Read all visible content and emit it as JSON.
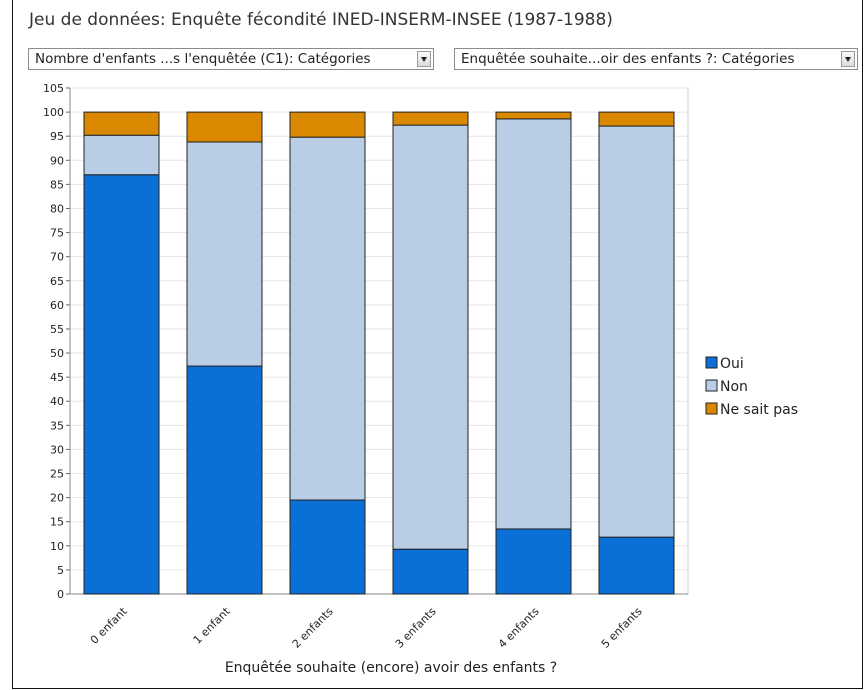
{
  "header": {
    "title": "Jeu de données: Enquête fécondité INED-INSERM-INSEE (1987-1988)"
  },
  "controls": {
    "select_left": "Nombre d'enfants ...s l'enquêtée (C1): Catégories",
    "select_right": "Enquêtée souhaite...oir des enfants ?: Catégories"
  },
  "chart_data": {
    "type": "bar",
    "stacked": true,
    "xlabel": "Enquêtée souhaite (encore) avoir des enfants ?",
    "ylabel": "",
    "ylim": [
      0,
      105
    ],
    "ytick_step": 5,
    "grid": true,
    "legend_position": "right",
    "categories": [
      "0 enfant",
      "1 enfant",
      "2 enfants",
      "3 enfants",
      "4 enfants",
      "5 enfants"
    ],
    "series": [
      {
        "name": "Oui",
        "color": "#0a6fd6",
        "values": [
          87,
          47.3,
          19.5,
          9.3,
          13.5,
          11.8
        ]
      },
      {
        "name": "Non",
        "color": "#b9cde4",
        "values": [
          8.2,
          46.5,
          75.3,
          88.0,
          85.1,
          85.3
        ]
      },
      {
        "name": "Ne sait pas",
        "color": "#d98800",
        "values": [
          4.8,
          6.2,
          5.2,
          2.7,
          1.4,
          2.9
        ]
      }
    ]
  }
}
